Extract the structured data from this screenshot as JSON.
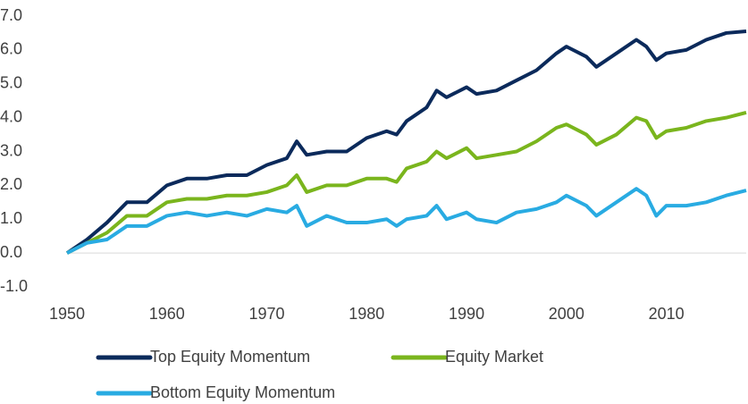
{
  "chart_data": {
    "type": "line",
    "x": [
      1950,
      1952,
      1954,
      1956,
      1958,
      1960,
      1962,
      1964,
      1966,
      1968,
      1970,
      1972,
      1973,
      1974,
      1976,
      1978,
      1980,
      1982,
      1983,
      1984,
      1986,
      1987,
      1988,
      1990,
      1991,
      1993,
      1995,
      1997,
      1999,
      2000,
      2002,
      2003,
      2005,
      2007,
      2008,
      2009,
      2010,
      2012,
      2014,
      2016,
      2018
    ],
    "series": [
      {
        "name": "Top Equity Momentum",
        "color": "#0b2a5b",
        "values": [
          0,
          0.4,
          0.9,
          1.5,
          1.5,
          2.0,
          2.2,
          2.2,
          2.3,
          2.3,
          2.6,
          2.8,
          3.3,
          2.9,
          3.0,
          3.0,
          3.4,
          3.6,
          3.5,
          3.9,
          4.3,
          4.8,
          4.6,
          4.9,
          4.7,
          4.8,
          5.1,
          5.4,
          5.9,
          6.1,
          5.8,
          5.5,
          5.9,
          6.3,
          6.1,
          5.7,
          5.9,
          6.0,
          6.3,
          6.5,
          6.55
        ]
      },
      {
        "name": "Equity Market",
        "color": "#7ab51d",
        "values": [
          0,
          0.3,
          0.6,
          1.1,
          1.1,
          1.5,
          1.6,
          1.6,
          1.7,
          1.7,
          1.8,
          2.0,
          2.3,
          1.8,
          2.0,
          2.0,
          2.2,
          2.2,
          2.1,
          2.5,
          2.7,
          3.0,
          2.8,
          3.1,
          2.8,
          2.9,
          3.0,
          3.3,
          3.7,
          3.8,
          3.5,
          3.2,
          3.5,
          4.0,
          3.9,
          3.4,
          3.6,
          3.7,
          3.9,
          4.0,
          4.15
        ]
      },
      {
        "name": "Bottom Equity Momentum",
        "color": "#29abe2",
        "values": [
          0,
          0.3,
          0.4,
          0.8,
          0.8,
          1.1,
          1.2,
          1.1,
          1.2,
          1.1,
          1.3,
          1.2,
          1.4,
          0.8,
          1.1,
          0.9,
          0.9,
          1.0,
          0.8,
          1.0,
          1.1,
          1.4,
          1.0,
          1.2,
          1.0,
          0.9,
          1.2,
          1.3,
          1.5,
          1.7,
          1.4,
          1.1,
          1.5,
          1.9,
          1.7,
          1.1,
          1.4,
          1.4,
          1.5,
          1.7,
          1.85
        ]
      }
    ],
    "xlim": [
      1950,
      2018
    ],
    "xticks": [
      1950,
      1960,
      1970,
      1980,
      1990,
      2000,
      2010
    ],
    "ylim": [
      -1,
      7
    ],
    "yticks": [
      {
        "value": -1,
        "label": "-1.0"
      },
      {
        "value": 0,
        "label": "0.0"
      },
      {
        "value": 1,
        "label": "1.0"
      },
      {
        "value": 2,
        "label": "2.0"
      },
      {
        "value": 3,
        "label": "3.0"
      },
      {
        "value": 4,
        "label": "4.0"
      },
      {
        "value": 5,
        "label": "5.0"
      },
      {
        "value": 6,
        "label": "6.0"
      },
      {
        "value": 7,
        "label": "7.0"
      }
    ],
    "grid": false,
    "legend": "bottom"
  }
}
